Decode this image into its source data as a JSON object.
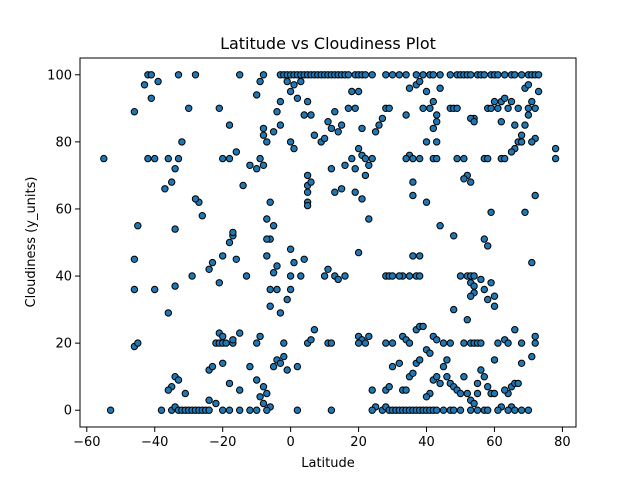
{
  "chart_data": {
    "type": "scatter",
    "title": "Latitude vs Cloudiness Plot",
    "xlabel": "Latitude",
    "ylabel": "Cloudiness (y_units)",
    "xlim": [
      -62,
      84
    ],
    "ylim": [
      -5,
      105
    ],
    "xticks": [
      -60,
      -40,
      -20,
      0,
      20,
      40,
      60,
      80
    ],
    "yticks": [
      0,
      20,
      40,
      60,
      80,
      100
    ],
    "grid": false,
    "marker_color": "#1f77b4",
    "marker_edge": "#000000",
    "points": [
      [
        -55,
        75
      ],
      [
        -53,
        0
      ],
      [
        -42,
        100
      ],
      [
        -41,
        100
      ],
      [
        -43,
        97
      ],
      [
        -39,
        98
      ],
      [
        -41,
        93
      ],
      [
        -42,
        75
      ],
      [
        -40,
        75
      ],
      [
        -36,
        75
      ],
      [
        -46,
        89
      ],
      [
        -45,
        55
      ],
      [
        -46,
        45
      ],
      [
        -46,
        36
      ],
      [
        -46,
        19
      ],
      [
        -45,
        20
      ],
      [
        -37,
        66
      ],
      [
        -40,
        36
      ],
      [
        -36,
        29
      ],
      [
        -33,
        100
      ],
      [
        -28,
        100
      ],
      [
        -32,
        80
      ],
      [
        -33,
        75
      ],
      [
        -34,
        72
      ],
      [
        -35,
        68
      ],
      [
        -30,
        90
      ],
      [
        -27,
        62
      ],
      [
        -28,
        63
      ],
      [
        -26,
        58
      ],
      [
        -34,
        54
      ],
      [
        -29,
        40
      ],
      [
        -34,
        37
      ],
      [
        -34,
        10
      ],
      [
        -33,
        9
      ],
      [
        -35,
        7
      ],
      [
        -36,
        6
      ],
      [
        -31,
        5
      ],
      [
        -38,
        0
      ],
      [
        -35,
        0
      ],
      [
        -34,
        1
      ],
      [
        -33,
        0
      ],
      [
        -32,
        0
      ],
      [
        -31,
        0
      ],
      [
        -30,
        0
      ],
      [
        -29,
        0
      ],
      [
        -28,
        0
      ],
      [
        -27,
        0
      ],
      [
        -26,
        0
      ],
      [
        -25,
        0
      ],
      [
        -24,
        0
      ],
      [
        -21,
        90
      ],
      [
        -18,
        85
      ],
      [
        -20,
        75
      ],
      [
        -18,
        75
      ],
      [
        -16,
        77
      ],
      [
        -15,
        100
      ],
      [
        -14,
        67
      ],
      [
        -12,
        73
      ],
      [
        -8,
        100
      ],
      [
        -9,
        98
      ],
      [
        -10,
        94
      ],
      [
        -8,
        84
      ],
      [
        -8,
        82
      ],
      [
        -7,
        80
      ],
      [
        -9,
        75
      ],
      [
        -8,
        73
      ],
      [
        -10,
        72
      ],
      [
        -17,
        52
      ],
      [
        -17,
        53
      ],
      [
        -18,
        50
      ],
      [
        -23,
        44
      ],
      [
        -24,
        42
      ],
      [
        -20,
        46
      ],
      [
        -16,
        45
      ],
      [
        -13,
        40
      ],
      [
        -21,
        38
      ],
      [
        -21,
        23
      ],
      [
        -20,
        22
      ],
      [
        -22,
        20
      ],
      [
        -21,
        20
      ],
      [
        -20,
        20
      ],
      [
        -19,
        20
      ],
      [
        -17,
        20
      ],
      [
        -15,
        23
      ],
      [
        -17,
        21
      ],
      [
        -9,
        22
      ],
      [
        -10,
        20
      ],
      [
        -24,
        12
      ],
      [
        -23,
        13
      ],
      [
        -20,
        14
      ],
      [
        -18,
        8
      ],
      [
        -15,
        6
      ],
      [
        -12,
        13
      ],
      [
        -10,
        9
      ],
      [
        -8,
        7
      ],
      [
        -7,
        5
      ],
      [
        -9,
        4
      ],
      [
        -8,
        2
      ],
      [
        -6,
        1
      ],
      [
        -24,
        3
      ],
      [
        -22,
        2
      ],
      [
        -20,
        0
      ],
      [
        -18,
        0
      ],
      [
        -15,
        0
      ],
      [
        -12,
        0
      ],
      [
        -10,
        0
      ],
      [
        -7,
        0
      ],
      [
        -6,
        62
      ],
      [
        -7,
        57
      ],
      [
        -5,
        55
      ],
      [
        -6,
        51
      ],
      [
        -7,
        51
      ],
      [
        -7,
        46
      ],
      [
        -5,
        41
      ],
      [
        -4,
        43
      ],
      [
        -6,
        36
      ],
      [
        -4,
        36
      ],
      [
        -6,
        31
      ],
      [
        -3,
        29
      ],
      [
        -4,
        15
      ],
      [
        -3,
        14
      ],
      [
        -5,
        13
      ],
      [
        -2,
        20
      ],
      [
        -2,
        16
      ],
      [
        -1,
        12
      ],
      [
        -3,
        100
      ],
      [
        -2,
        100
      ],
      [
        -1,
        98
      ],
      [
        -4,
        89
      ],
      [
        -5,
        83
      ],
      [
        -3,
        85
      ],
      [
        -3,
        92
      ],
      [
        -1,
        100
      ],
      [
        0,
        100
      ],
      [
        1,
        100
      ],
      [
        2,
        100
      ],
      [
        3,
        100
      ],
      [
        4,
        100
      ],
      [
        5,
        100
      ],
      [
        6,
        100
      ],
      [
        7,
        100
      ],
      [
        8,
        100
      ],
      [
        9,
        100
      ],
      [
        10,
        100
      ],
      [
        11,
        100
      ],
      [
        12,
        100
      ],
      [
        13,
        100
      ],
      [
        14,
        100
      ],
      [
        15,
        100
      ],
      [
        16,
        100
      ],
      [
        17,
        100
      ],
      [
        19,
        100
      ],
      [
        20,
        100
      ],
      [
        21,
        100
      ],
      [
        22,
        100
      ],
      [
        0,
        95
      ],
      [
        1,
        97
      ],
      [
        3,
        98
      ],
      [
        2,
        93
      ],
      [
        5,
        92
      ],
      [
        4,
        88
      ],
      [
        6,
        88
      ],
      [
        7,
        82
      ],
      [
        9,
        80
      ],
      [
        10,
        81
      ],
      [
        11,
        86
      ],
      [
        12,
        84
      ],
      [
        13,
        89
      ],
      [
        14,
        83
      ],
      [
        15,
        85
      ],
      [
        17,
        90
      ],
      [
        18,
        95
      ],
      [
        19,
        90
      ],
      [
        20,
        95
      ],
      [
        21,
        84
      ],
      [
        0,
        80
      ],
      [
        1,
        78
      ],
      [
        5,
        70
      ],
      [
        5,
        67
      ],
      [
        6,
        68
      ],
      [
        5,
        65
      ],
      [
        5,
        62
      ],
      [
        5,
        61
      ],
      [
        12,
        72
      ],
      [
        13,
        65
      ],
      [
        16,
        73
      ],
      [
        18,
        75
      ],
      [
        19,
        72
      ],
      [
        20,
        78
      ],
      [
        21,
        76
      ],
      [
        22,
        75
      ],
      [
        23,
        73
      ],
      [
        22,
        70
      ],
      [
        15,
        66
      ],
      [
        19,
        65
      ],
      [
        21,
        63
      ],
      [
        23,
        57
      ],
      [
        20,
        47
      ],
      [
        0,
        48
      ],
      [
        1,
        44
      ],
      [
        0,
        40
      ],
      [
        3,
        40
      ],
      [
        4,
        45
      ],
      [
        10,
        40
      ],
      [
        11,
        42
      ],
      [
        13,
        40
      ],
      [
        14,
        39
      ],
      [
        16,
        40
      ],
      [
        0,
        36
      ],
      [
        -1,
        33
      ],
      [
        2,
        13
      ],
      [
        5,
        20
      ],
      [
        6,
        21
      ],
      [
        7,
        24
      ],
      [
        11,
        20
      ],
      [
        12,
        20
      ],
      [
        20,
        22
      ],
      [
        21,
        21
      ],
      [
        22,
        20
      ],
      [
        23,
        22
      ],
      [
        20,
        20
      ],
      [
        2,
        0
      ],
      [
        12,
        0
      ],
      [
        24,
        75
      ],
      [
        25,
        83
      ],
      [
        27,
        87
      ],
      [
        28,
        90
      ],
      [
        26,
        85
      ],
      [
        29,
        90
      ],
      [
        24,
        100
      ],
      [
        28,
        100
      ],
      [
        30,
        100
      ],
      [
        32,
        100
      ],
      [
        34,
        100
      ],
      [
        37,
        100
      ],
      [
        39,
        100
      ],
      [
        41,
        100
      ],
      [
        42,
        100
      ],
      [
        44,
        100
      ],
      [
        47,
        100
      ],
      [
        49,
        100
      ],
      [
        50,
        100
      ],
      [
        51,
        100
      ],
      [
        52,
        100
      ],
      [
        53,
        100
      ],
      [
        55,
        100
      ],
      [
        56,
        100
      ],
      [
        57,
        100
      ],
      [
        59,
        100
      ],
      [
        60,
        100
      ],
      [
        61,
        100
      ],
      [
        63,
        100
      ],
      [
        65,
        100
      ],
      [
        66,
        100
      ],
      [
        68,
        100
      ],
      [
        70,
        100
      ],
      [
        71,
        100
      ],
      [
        72,
        100
      ],
      [
        73,
        100
      ],
      [
        35,
        96
      ],
      [
        37,
        97
      ],
      [
        38,
        98
      ],
      [
        40,
        95
      ],
      [
        42,
        92
      ],
      [
        44,
        96
      ],
      [
        39,
        90
      ],
      [
        41,
        90
      ],
      [
        47,
        90
      ],
      [
        48,
        90
      ],
      [
        49,
        90
      ],
      [
        34,
        88
      ],
      [
        43,
        88
      ],
      [
        42,
        84
      ],
      [
        43,
        86
      ],
      [
        40,
        80
      ],
      [
        43,
        80
      ],
      [
        35,
        76
      ],
      [
        34,
        75
      ],
      [
        36,
        75
      ],
      [
        38,
        75
      ],
      [
        42,
        75
      ],
      [
        43,
        75
      ],
      [
        49,
        75
      ],
      [
        51,
        75
      ],
      [
        52,
        70
      ],
      [
        53,
        68
      ],
      [
        51,
        69
      ],
      [
        54,
        87
      ],
      [
        53,
        87
      ],
      [
        54,
        86
      ],
      [
        58,
        90
      ],
      [
        59,
        90
      ],
      [
        60,
        92
      ],
      [
        61,
        90
      ],
      [
        62,
        92
      ],
      [
        63,
        93
      ],
      [
        64,
        90
      ],
      [
        65,
        92
      ],
      [
        62,
        86
      ],
      [
        62,
        75
      ],
      [
        63,
        75
      ],
      [
        57,
        75
      ],
      [
        58,
        75
      ],
      [
        66,
        85
      ],
      [
        67,
        80
      ],
      [
        68,
        82
      ],
      [
        69,
        85
      ],
      [
        70,
        88
      ],
      [
        70,
        90
      ],
      [
        71,
        92
      ],
      [
        72,
        90
      ],
      [
        72,
        81
      ],
      [
        71,
        80
      ],
      [
        68,
        80
      ],
      [
        66,
        78
      ],
      [
        65,
        77
      ],
      [
        67,
        90
      ],
      [
        69,
        96
      ],
      [
        70,
        97
      ],
      [
        73,
        95
      ],
      [
        78,
        78
      ],
      [
        78,
        75
      ],
      [
        36,
        68
      ],
      [
        36,
        64
      ],
      [
        40,
        62
      ],
      [
        44,
        55
      ],
      [
        48,
        52
      ],
      [
        57,
        51
      ],
      [
        58,
        49
      ],
      [
        59,
        59
      ],
      [
        69,
        59
      ],
      [
        72,
        64
      ],
      [
        71,
        44
      ],
      [
        36,
        46
      ],
      [
        38,
        46
      ],
      [
        37,
        40
      ],
      [
        38,
        40
      ],
      [
        35,
        40
      ],
      [
        33,
        40
      ],
      [
        32,
        40
      ],
      [
        28,
        40
      ],
      [
        29,
        40
      ],
      [
        30,
        40
      ],
      [
        50,
        40
      ],
      [
        52,
        40
      ],
      [
        53,
        40
      ],
      [
        54,
        40
      ],
      [
        53,
        38
      ],
      [
        54,
        37
      ],
      [
        54,
        35
      ],
      [
        53,
        34
      ],
      [
        56,
        39
      ],
      [
        57,
        36
      ],
      [
        58,
        33
      ],
      [
        59,
        38
      ],
      [
        60,
        31
      ],
      [
        60,
        34
      ],
      [
        52,
        27
      ],
      [
        48,
        30
      ],
      [
        28,
        20
      ],
      [
        30,
        20
      ],
      [
        33,
        22
      ],
      [
        34,
        21
      ],
      [
        35,
        20
      ],
      [
        37,
        24
      ],
      [
        38,
        25
      ],
      [
        39,
        25
      ],
      [
        42,
        22
      ],
      [
        43,
        21
      ],
      [
        45,
        20
      ],
      [
        47,
        20
      ],
      [
        46,
        15
      ],
      [
        51,
        20
      ],
      [
        53,
        20
      ],
      [
        54,
        20
      ],
      [
        55,
        20
      ],
      [
        56,
        20
      ],
      [
        56,
        12
      ],
      [
        57,
        10
      ],
      [
        58,
        7
      ],
      [
        59,
        5
      ],
      [
        60,
        5
      ],
      [
        60,
        15
      ],
      [
        61,
        20
      ],
      [
        63,
        21
      ],
      [
        64,
        20
      ],
      [
        64,
        5
      ],
      [
        65,
        7
      ],
      [
        66,
        8
      ],
      [
        67,
        8
      ],
      [
        66,
        24
      ],
      [
        68,
        20
      ],
      [
        72,
        20
      ],
      [
        72,
        22
      ],
      [
        71,
        16
      ],
      [
        68,
        14
      ],
      [
        24,
        6
      ],
      [
        25,
        1
      ],
      [
        28,
        6
      ],
      [
        29,
        7
      ],
      [
        30,
        13
      ],
      [
        32,
        14
      ],
      [
        33,
        6
      ],
      [
        34,
        6
      ],
      [
        35,
        10
      ],
      [
        36,
        11
      ],
      [
        37,
        14
      ],
      [
        38,
        15
      ],
      [
        40,
        18
      ],
      [
        41,
        17
      ],
      [
        42,
        9
      ],
      [
        43,
        10
      ],
      [
        41,
        5
      ],
      [
        40,
        4
      ],
      [
        44,
        8
      ],
      [
        45,
        13
      ],
      [
        46,
        10
      ],
      [
        47,
        8
      ],
      [
        48,
        7
      ],
      [
        49,
        6
      ],
      [
        50,
        5
      ],
      [
        51,
        10
      ],
      [
        52,
        5
      ],
      [
        53,
        3
      ],
      [
        54,
        2
      ],
      [
        55,
        8
      ],
      [
        55,
        5
      ],
      [
        63,
        6
      ],
      [
        62,
        1
      ],
      [
        65,
        1
      ],
      [
        24,
        0
      ],
      [
        27,
        0
      ],
      [
        28,
        1
      ],
      [
        29,
        0
      ],
      [
        30,
        0
      ],
      [
        31,
        0
      ],
      [
        32,
        0
      ],
      [
        33,
        0
      ],
      [
        34,
        0
      ],
      [
        35,
        0
      ],
      [
        36,
        0
      ],
      [
        37,
        0
      ],
      [
        38,
        0
      ],
      [
        39,
        0
      ],
      [
        40,
        0
      ],
      [
        41,
        0
      ],
      [
        42,
        0
      ],
      [
        43,
        0
      ],
      [
        45,
        0
      ],
      [
        47,
        0
      ],
      [
        48,
        0
      ],
      [
        50,
        0
      ],
      [
        53,
        0
      ],
      [
        55,
        0
      ],
      [
        57,
        0
      ],
      [
        58,
        0
      ],
      [
        61,
        0
      ],
      [
        64,
        0
      ],
      [
        66,
        0
      ],
      [
        68,
        0
      ],
      [
        70,
        0
      ]
    ]
  }
}
